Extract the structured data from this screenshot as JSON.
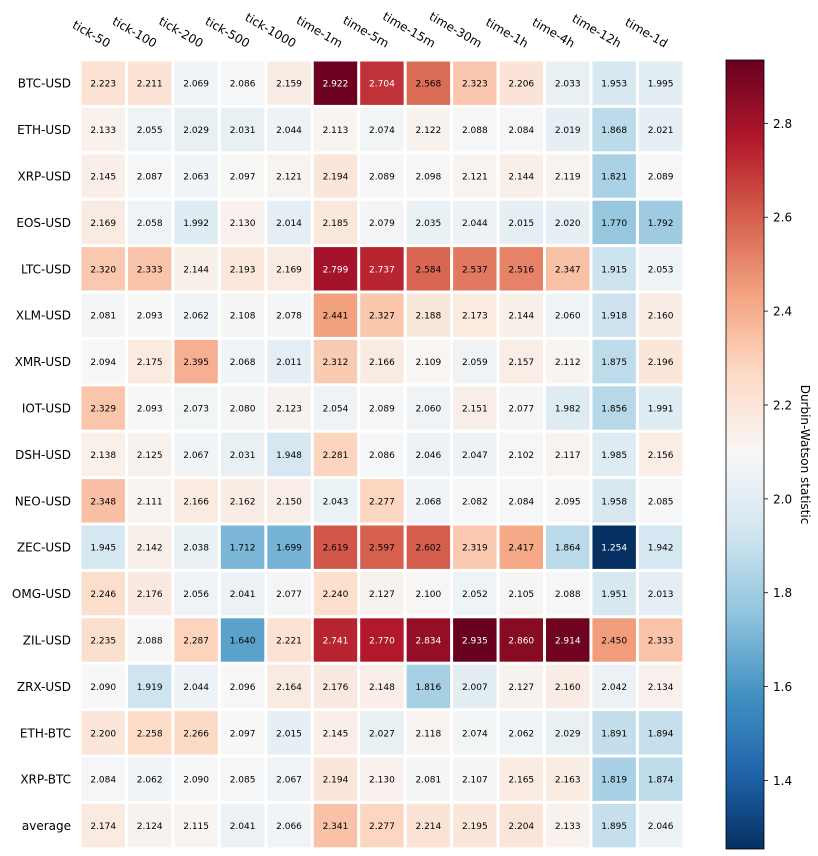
{
  "chart_data": {
    "type": "heatmap",
    "x_categories": [
      "tick-50",
      "tick-100",
      "tick-200",
      "tick-500",
      "tick-1000",
      "time-1m",
      "time-5m",
      "time-15m",
      "time-30m",
      "time-1h",
      "time-4h",
      "time-12h",
      "time-1d"
    ],
    "y_categories": [
      "BTC-USD",
      "ETH-USD",
      "XRP-USD",
      "EOS-USD",
      "LTC-USD",
      "XLM-USD",
      "XMR-USD",
      "IOT-USD",
      "DSH-USD",
      "NEO-USD",
      "ZEC-USD",
      "OMG-USD",
      "ZIL-USD",
      "ZRX-USD",
      "ETH-BTC",
      "XRP-BTC",
      "average"
    ],
    "values": [
      [
        2.223,
        2.211,
        2.069,
        2.086,
        2.159,
        2.922,
        2.704,
        2.568,
        2.323,
        2.206,
        2.033,
        1.953,
        1.995
      ],
      [
        2.133,
        2.055,
        2.029,
        2.031,
        2.044,
        2.113,
        2.074,
        2.122,
        2.088,
        2.084,
        2.019,
        1.868,
        2.021
      ],
      [
        2.145,
        2.087,
        2.063,
        2.097,
        2.121,
        2.194,
        2.089,
        2.098,
        2.121,
        2.144,
        2.119,
        1.821,
        2.089
      ],
      [
        2.169,
        2.058,
        1.992,
        2.13,
        2.014,
        2.185,
        2.079,
        2.035,
        2.044,
        2.015,
        2.02,
        1.77,
        1.792
      ],
      [
        2.32,
        2.333,
        2.144,
        2.193,
        2.169,
        2.799,
        2.737,
        2.584,
        2.537,
        2.516,
        2.347,
        1.915,
        2.053
      ],
      [
        2.081,
        2.093,
        2.062,
        2.108,
        2.078,
        2.441,
        2.327,
        2.188,
        2.173,
        2.144,
        2.06,
        1.918,
        2.16
      ],
      [
        2.094,
        2.175,
        2.395,
        2.068,
        2.011,
        2.312,
        2.166,
        2.109,
        2.059,
        2.157,
        2.112,
        1.875,
        2.196
      ],
      [
        2.329,
        2.093,
        2.073,
        2.08,
        2.123,
        2.054,
        2.089,
        2.06,
        2.151,
        2.077,
        1.982,
        1.856,
        1.991
      ],
      [
        2.138,
        2.125,
        2.067,
        2.031,
        1.948,
        2.281,
        2.086,
        2.046,
        2.047,
        2.102,
        2.117,
        1.985,
        2.156
      ],
      [
        2.348,
        2.111,
        2.166,
        2.162,
        2.15,
        2.043,
        2.277,
        2.068,
        2.082,
        2.084,
        2.095,
        1.958,
        2.085
      ],
      [
        1.945,
        2.142,
        2.038,
        1.712,
        1.699,
        2.619,
        2.597,
        2.602,
        2.319,
        2.417,
        1.864,
        1.254,
        1.942
      ],
      [
        2.246,
        2.176,
        2.056,
        2.041,
        2.077,
        2.24,
        2.127,
        2.1,
        2.052,
        2.105,
        2.088,
        1.951,
        2.013
      ],
      [
        2.235,
        2.088,
        2.287,
        1.64,
        2.221,
        2.741,
        2.77,
        2.834,
        2.935,
        2.86,
        2.914,
        2.45,
        2.333
      ],
      [
        2.09,
        1.919,
        2.044,
        2.096,
        2.164,
        2.176,
        2.148,
        1.816,
        2.007,
        2.127,
        2.16,
        2.042,
        2.134
      ],
      [
        2.2,
        2.258,
        2.266,
        2.097,
        2.015,
        2.145,
        2.027,
        2.118,
        2.074,
        2.062,
        2.029,
        1.891,
        1.894
      ],
      [
        2.084,
        2.062,
        2.09,
        2.085,
        2.067,
        2.194,
        2.13,
        2.081,
        2.107,
        2.165,
        2.163,
        1.819,
        1.874
      ],
      [
        2.174,
        2.124,
        2.115,
        2.041,
        2.066,
        2.341,
        2.277,
        2.214,
        2.195,
        2.204,
        2.133,
        1.895,
        2.046
      ]
    ],
    "colorbar": {
      "label": "Durbin-Watson statistic",
      "ticks": [
        1.4,
        1.6,
        1.8,
        2.0,
        2.2,
        2.4,
        2.6,
        2.8
      ],
      "range": [
        1.254,
        2.935
      ],
      "center": 2.094,
      "colormap": "RdBu_r"
    },
    "grid": false
  }
}
